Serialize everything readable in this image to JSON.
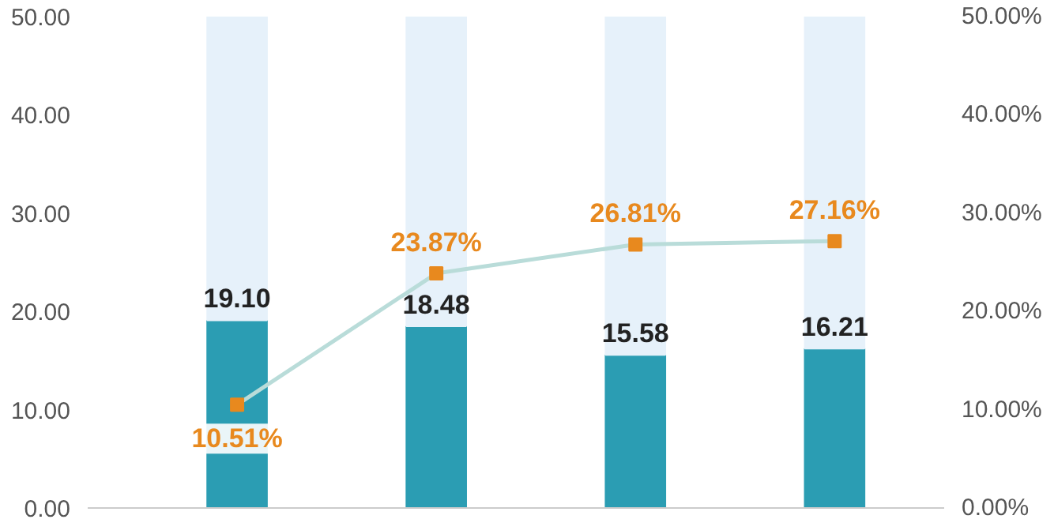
{
  "chart_data": {
    "type": "bar",
    "categories": [
      null,
      null,
      null,
      null
    ],
    "stacked": true,
    "series": [
      {
        "color": "#2b9db3",
        "values": [
          19.1,
          18.48,
          15.58,
          16.21
        ],
        "value_labels": [
          "19.10",
          "18.48",
          "15.58",
          "16.21"
        ]
      },
      {
        "color": "#e6f1fa",
        "values": [
          30.9,
          31.5,
          34.4,
          33.8
        ]
      },
      {
        "type": "line",
        "axis": "y2",
        "color": "#b9dcd9",
        "marker": "square",
        "values": [
          10.51,
          23.87,
          26.81,
          27.16
        ],
        "value_labels": [
          "10.51%",
          "23.87%",
          "26.81%",
          "27.16%"
        ]
      }
    ],
    "ylim": [
      0,
      50
    ],
    "yticks": [
      {
        "value": 0,
        "label": "0.00"
      },
      {
        "value": 10,
        "label": "10.00"
      },
      {
        "value": 20,
        "label": "20.00"
      },
      {
        "value": 30,
        "label": "30.00"
      },
      {
        "value": 40,
        "label": "40.00"
      },
      {
        "value": 50,
        "label": "50.00"
      }
    ],
    "y2lim": [
      0,
      50
    ],
    "y2ticks": [
      {
        "value": 0,
        "label": "0.00%"
      },
      {
        "value": 10,
        "label": "10.00%"
      },
      {
        "value": 20,
        "label": "20.00%"
      },
      {
        "value": 30,
        "label": "30.00%"
      },
      {
        "value": 40,
        "label": "40.00%"
      },
      {
        "value": 50,
        "label": "50.00%"
      }
    ],
    "tick_labels": "y",
    "grid": false
  }
}
